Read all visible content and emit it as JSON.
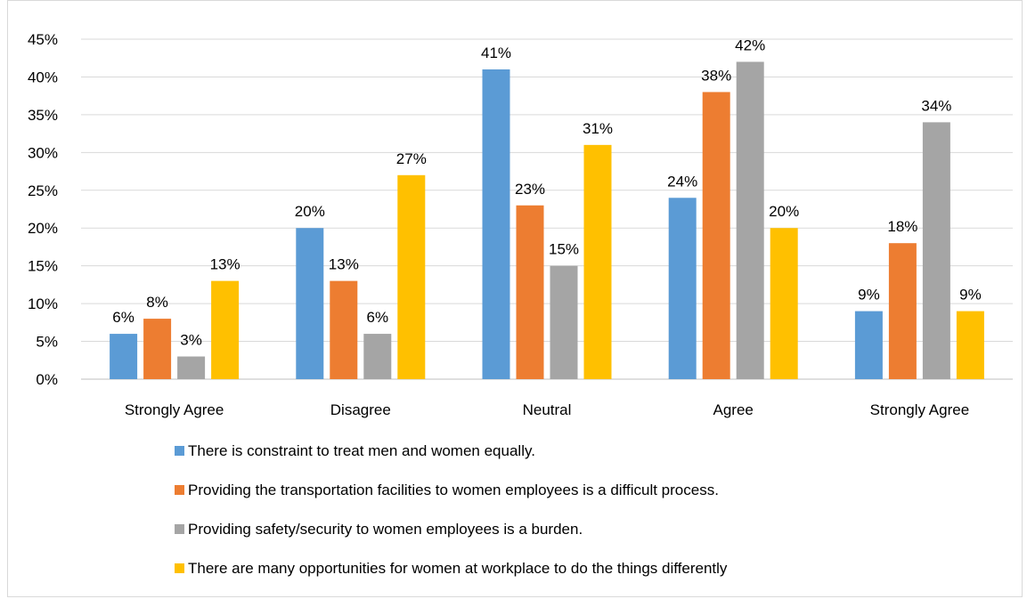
{
  "chart_data": {
    "type": "bar",
    "categories": [
      "Strongly Agree",
      "Disagree",
      "Neutral",
      "Agree",
      "Strongly Agree"
    ],
    "series": [
      {
        "name": "There is constraint to treat men and women equally.",
        "color": "#5b9bd5",
        "values": [
          6,
          20,
          41,
          24,
          9
        ]
      },
      {
        "name": "Providing the transportation facilities to women employees is a difficult process.",
        "color": "#ed7d31",
        "values": [
          8,
          13,
          23,
          38,
          18
        ]
      },
      {
        "name": "Providing safety/security to women employees is a burden.",
        "color": "#a5a5a5",
        "values": [
          3,
          6,
          15,
          42,
          34
        ]
      },
      {
        "name": "There are many opportunities for women at workplace to do the things differently",
        "color": "#ffc000",
        "values": [
          13,
          27,
          31,
          20,
          9
        ]
      }
    ],
    "y_ticks": [
      "0%",
      "5%",
      "10%",
      "15%",
      "20%",
      "25%",
      "30%",
      "35%",
      "40%",
      "45%"
    ],
    "ylim": [
      0,
      45
    ],
    "value_suffix": "%",
    "grid": true,
    "legend_position": "bottom",
    "title": "",
    "xlabel": "",
    "ylabel": ""
  }
}
